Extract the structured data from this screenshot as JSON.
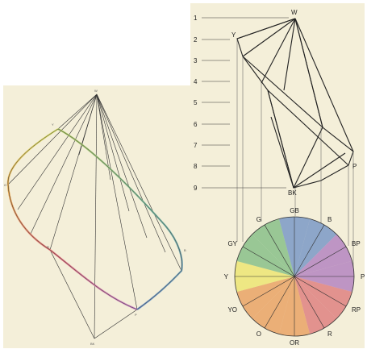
{
  "left_diagram": {
    "point_labels": {
      "top": "W",
      "upper": "Y",
      "left": "O",
      "right": "B",
      "lower_left": "R",
      "lower_right": "P",
      "bottom": "BK"
    }
  },
  "right_diagram": {
    "scale_numbers": [
      "1",
      "2",
      "3",
      "4",
      "5",
      "6",
      "7",
      "8",
      "9"
    ],
    "solid_labels": {
      "top": "W",
      "upper": "Y",
      "right": "P",
      "bottom": "BK"
    }
  },
  "hue_circle": {
    "labels": [
      "GB",
      "B",
      "BP",
      "P",
      "RP",
      "R",
      "OR",
      "O",
      "YO",
      "Y",
      "GY",
      "G"
    ],
    "colors": {
      "yellow": "#f0ea6a",
      "green": "#7fbf82",
      "blue": "#6f93c7",
      "purple": "#b07cc0",
      "red": "#e07878",
      "orange": "#ec9f5a"
    }
  },
  "colors": {
    "paper": "#f4efd9",
    "line": "#222222"
  }
}
